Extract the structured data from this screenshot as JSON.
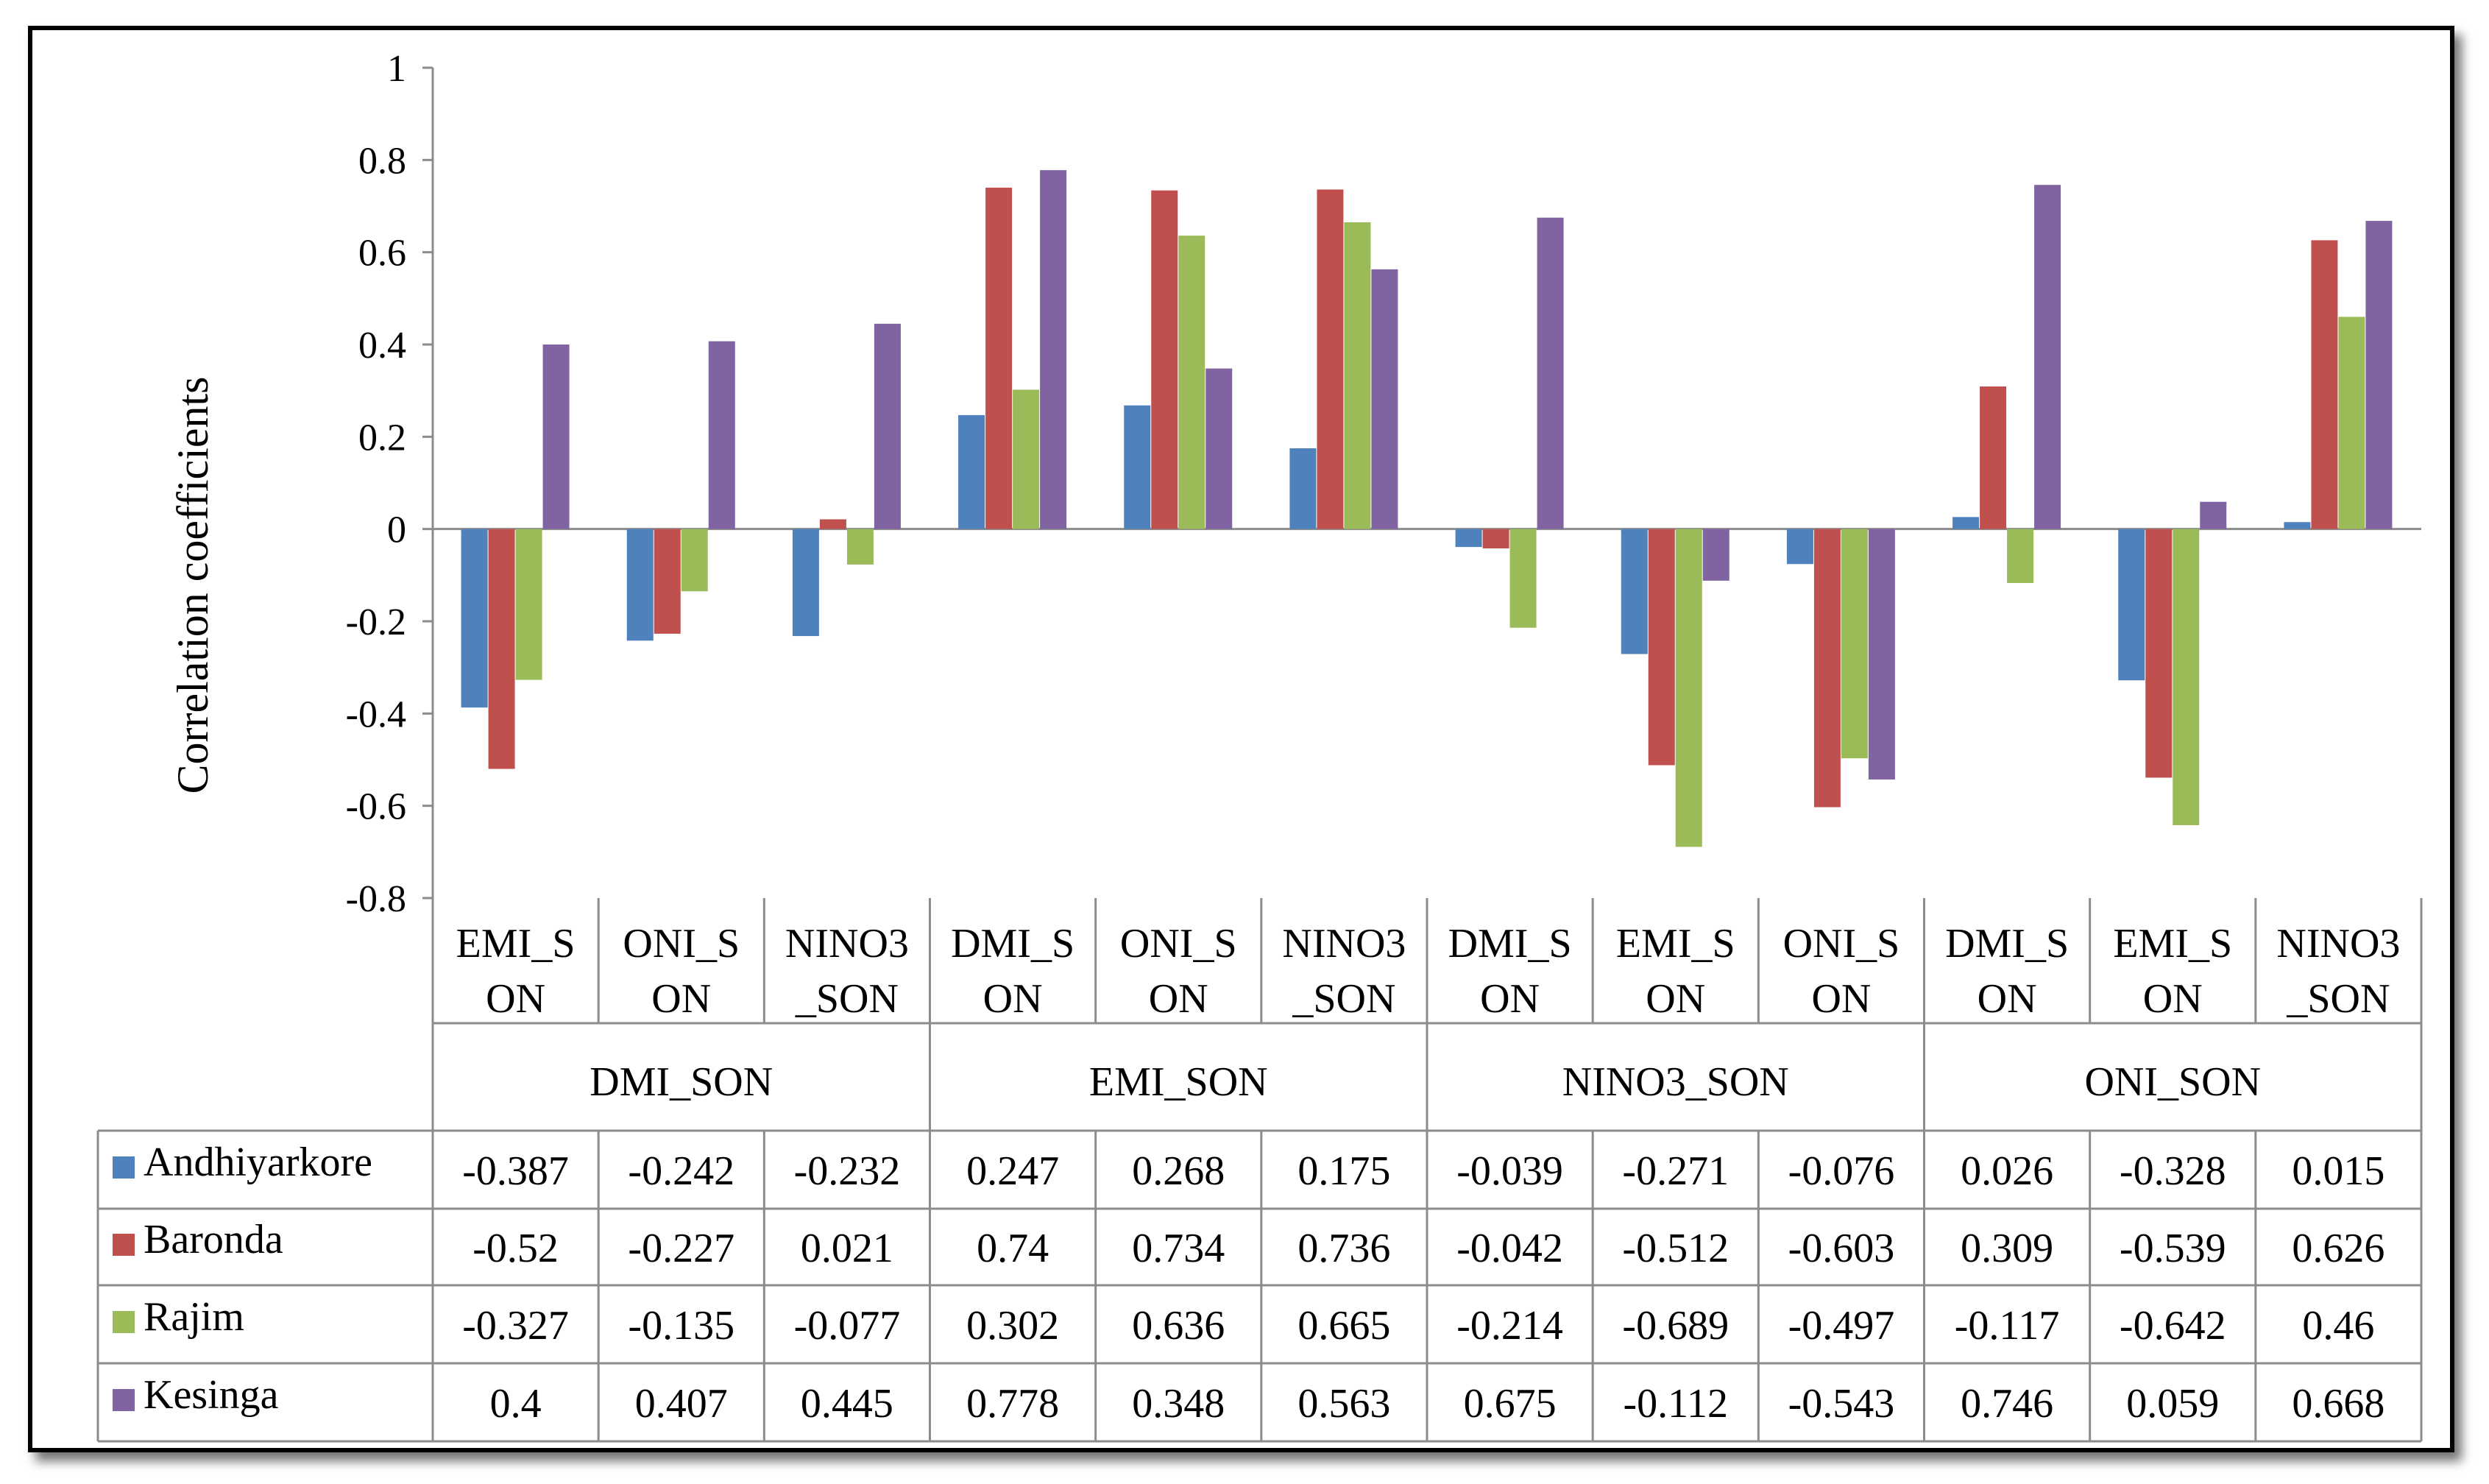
{
  "chart_data": {
    "type": "bar",
    "title": "",
    "ylabel": "Correlation coefficients",
    "xlabel": "",
    "ylim": [
      -0.8,
      1
    ],
    "yticks": [
      "1",
      "0.8",
      "0.6",
      "0.4",
      "0.2",
      "0",
      "-0.2",
      "-0.4",
      "-0.6",
      "-0.8"
    ],
    "ytick_values": [
      1,
      0.8,
      0.6,
      0.4,
      0.2,
      0,
      -0.2,
      -0.4,
      -0.6,
      -0.8
    ],
    "grid": false,
    "legend": "data-table-left",
    "groups": [
      {
        "label": "DMI_SON",
        "categories": [
          {
            "line1": "EMI_S",
            "line2": "ON"
          },
          {
            "line1": "ONI_S",
            "line2": "ON"
          },
          {
            "line1": "NINO3",
            "line2": "_SON"
          }
        ]
      },
      {
        "label": "EMI_SON",
        "categories": [
          {
            "line1": "DMI_S",
            "line2": "ON"
          },
          {
            "line1": "ONI_S",
            "line2": "ON"
          },
          {
            "line1": "NINO3",
            "line2": "_SON"
          }
        ]
      },
      {
        "label": "NINO3_SON",
        "categories": [
          {
            "line1": "DMI_S",
            "line2": "ON"
          },
          {
            "line1": "EMI_S",
            "line2": "ON"
          },
          {
            "line1": "ONI_S",
            "line2": "ON"
          }
        ]
      },
      {
        "label": "ONI_SON",
        "categories": [
          {
            "line1": "DMI_S",
            "line2": "ON"
          },
          {
            "line1": "EMI_S",
            "line2": "ON"
          },
          {
            "line1": "NINO3",
            "line2": "_SON"
          }
        ]
      }
    ],
    "series": [
      {
        "name": "Andhiyarkore",
        "color": "#4F81BD",
        "values": [
          -0.387,
          -0.242,
          -0.232,
          0.247,
          0.268,
          0.175,
          -0.039,
          -0.271,
          -0.076,
          0.026,
          -0.328,
          0.015
        ],
        "labels": [
          "-0.387",
          "-0.242",
          "-0.232",
          "0.247",
          "0.268",
          "0.175",
          "-0.039",
          "-0.271",
          "-0.076",
          "0.026",
          "-0.328",
          "0.015"
        ]
      },
      {
        "name": "Baronda",
        "color": "#C0504D",
        "values": [
          -0.52,
          -0.227,
          0.021,
          0.74,
          0.734,
          0.736,
          -0.042,
          -0.512,
          -0.603,
          0.309,
          -0.539,
          0.626
        ],
        "labels": [
          "-0.52",
          "-0.227",
          "0.021",
          "0.74",
          "0.734",
          "0.736",
          "-0.042",
          "-0.512",
          "-0.603",
          "0.309",
          "-0.539",
          "0.626"
        ]
      },
      {
        "name": "Rajim",
        "color": "#9BBB59",
        "values": [
          -0.327,
          -0.135,
          -0.077,
          0.302,
          0.636,
          0.665,
          -0.214,
          -0.689,
          -0.497,
          -0.117,
          -0.642,
          0.46
        ],
        "labels": [
          "-0.327",
          "-0.135",
          "-0.077",
          "0.302",
          "0.636",
          "0.665",
          "-0.214",
          "-0.689",
          "-0.497",
          "-0.117",
          "-0.642",
          "0.46"
        ]
      },
      {
        "name": "Kesinga",
        "color": "#8064A2",
        "values": [
          0.4,
          0.407,
          0.445,
          0.778,
          0.348,
          0.563,
          0.675,
          -0.112,
          -0.543,
          0.746,
          0.059,
          0.668
        ],
        "labels": [
          "0.4",
          "0.407",
          "0.445",
          "0.778",
          "0.348",
          "0.563",
          "0.675",
          "-0.112",
          "-0.543",
          "0.746",
          "0.059",
          "0.668"
        ]
      }
    ]
  }
}
